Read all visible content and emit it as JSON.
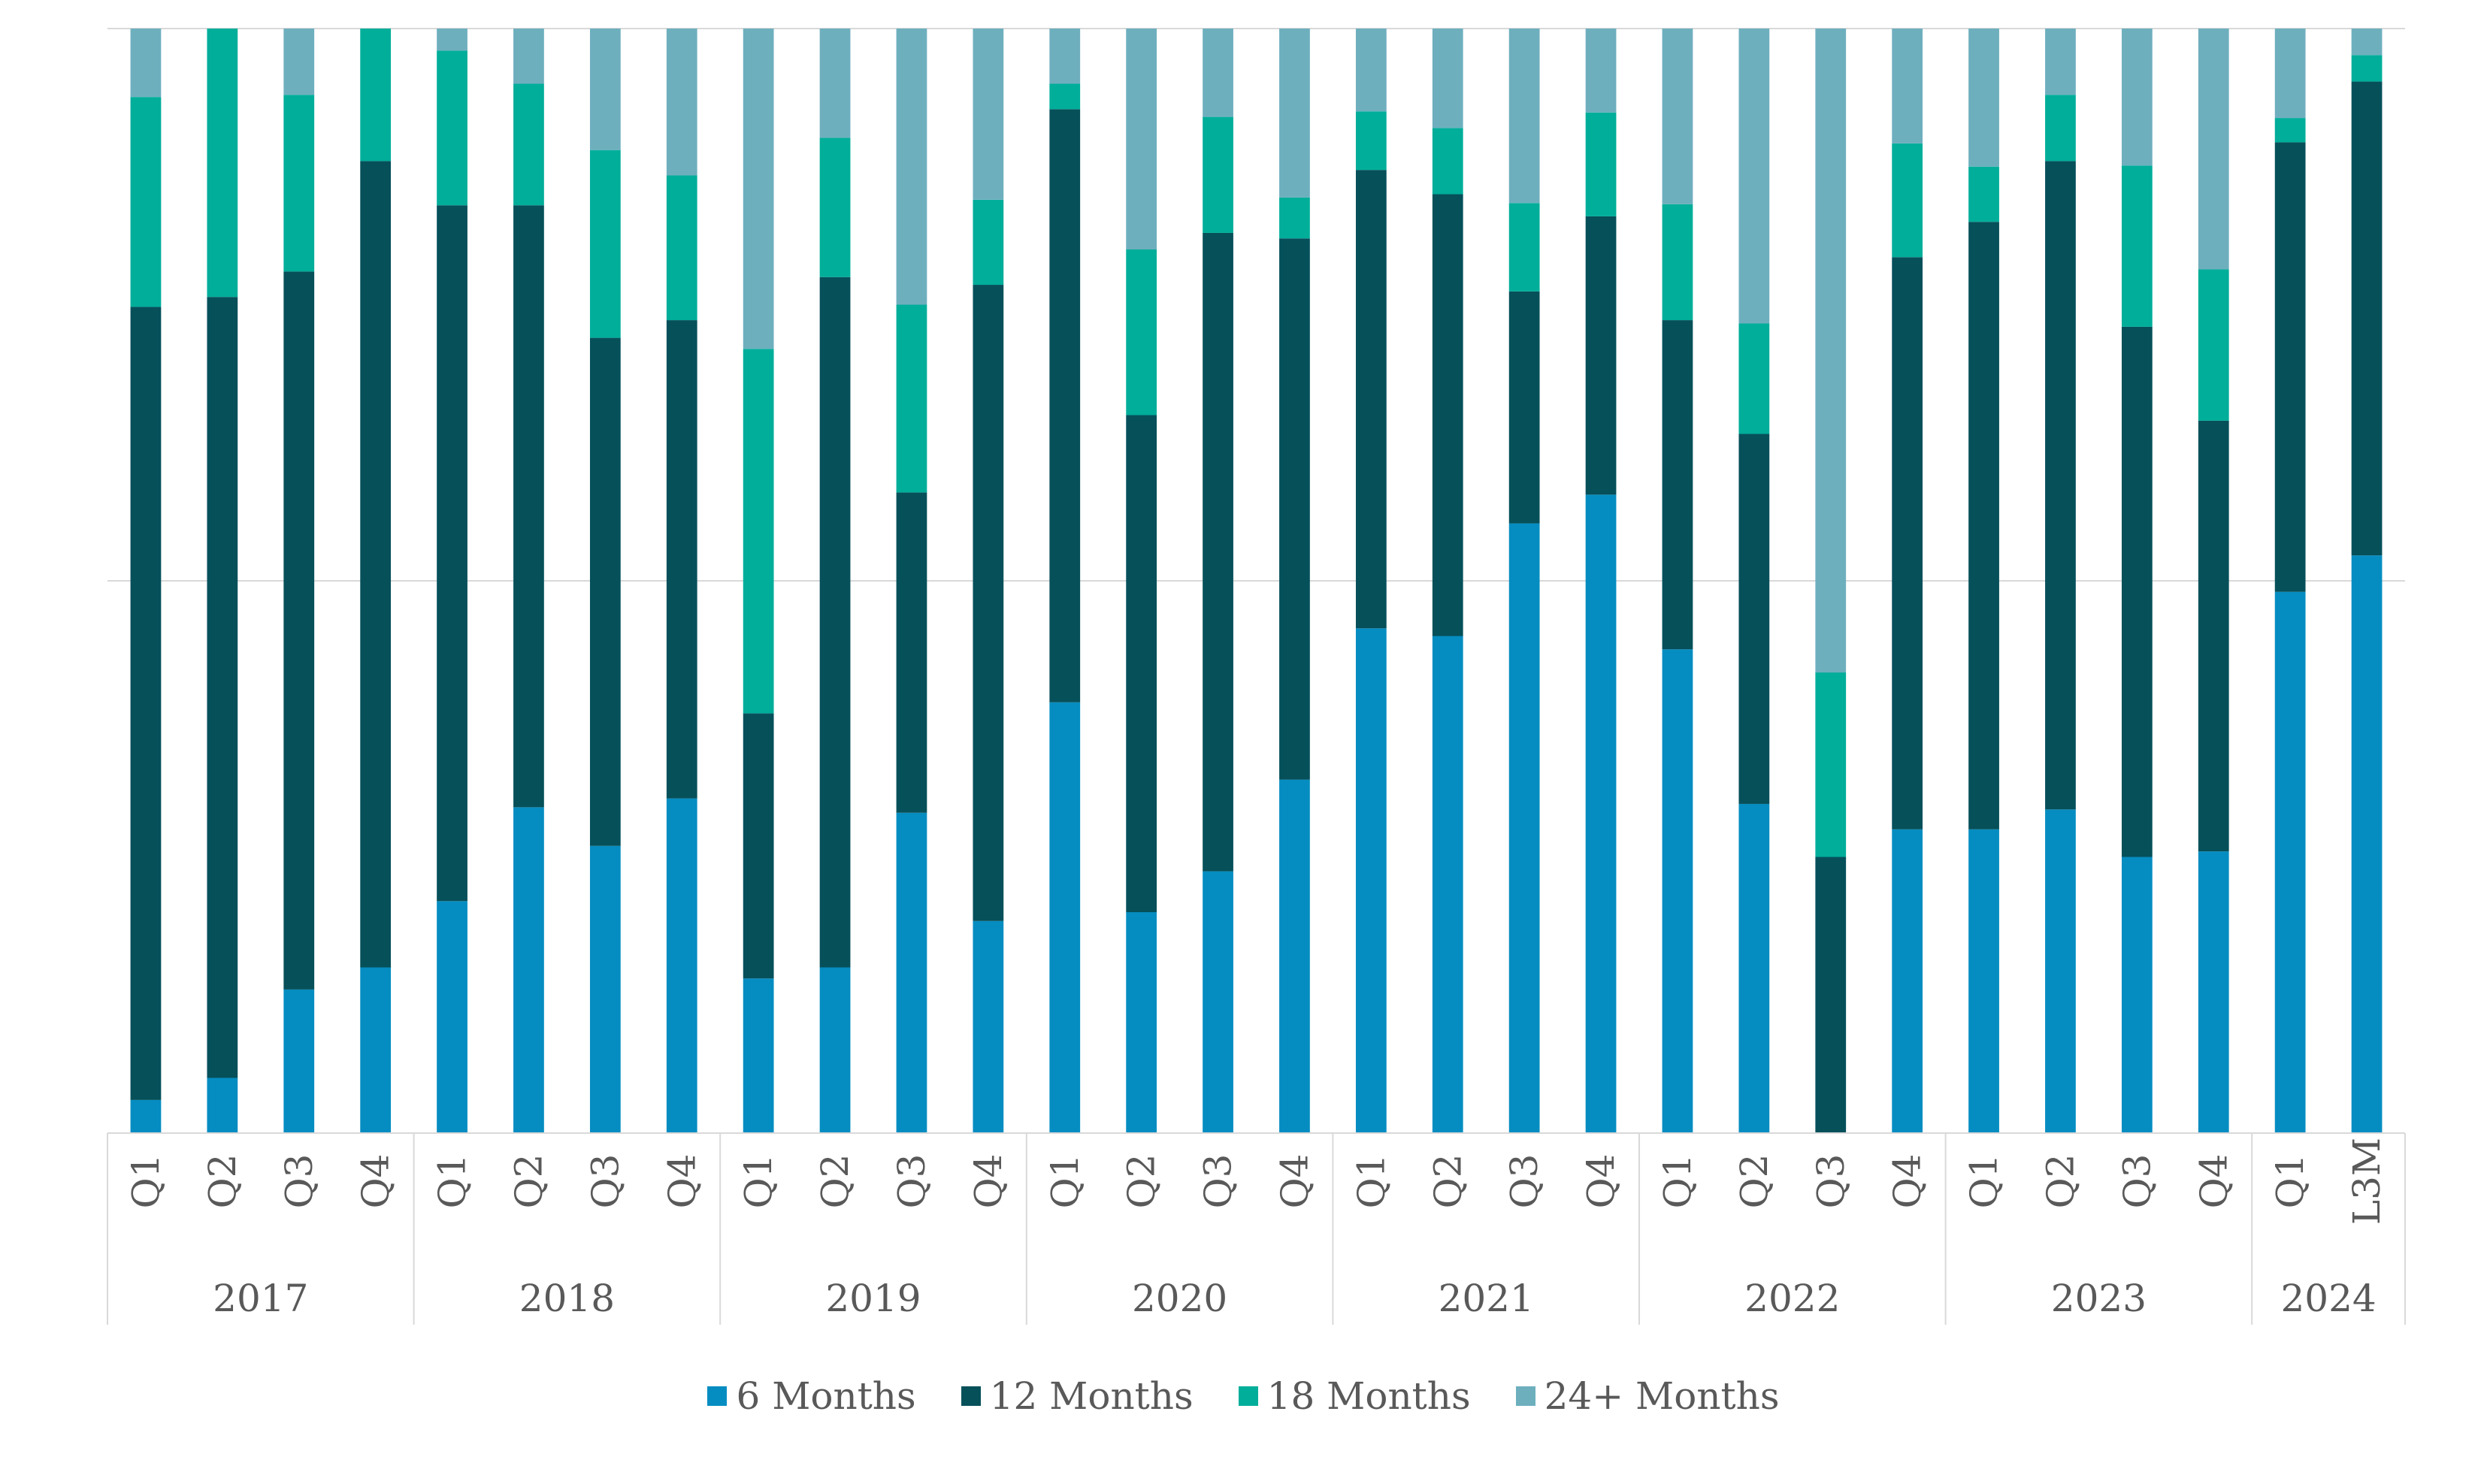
{
  "chart_data": {
    "type": "bar",
    "stacked": true,
    "normalized": true,
    "ylim": [
      0,
      1
    ],
    "grid": true,
    "legend_position": "bottom",
    "groups": [
      {
        "label": "2017",
        "categories": [
          "Q1",
          "Q2",
          "Q3",
          "Q4"
        ]
      },
      {
        "label": "2018",
        "categories": [
          "Q1",
          "Q2",
          "Q3",
          "Q4"
        ]
      },
      {
        "label": "2019",
        "categories": [
          "Q1",
          "Q2",
          "Q3",
          "Q4"
        ]
      },
      {
        "label": "2020",
        "categories": [
          "Q1",
          "Q2",
          "Q3",
          "Q4"
        ]
      },
      {
        "label": "2021",
        "categories": [
          "Q1",
          "Q2",
          "Q3",
          "Q4"
        ]
      },
      {
        "label": "2022",
        "categories": [
          "Q1",
          "Q2",
          "Q3",
          "Q4"
        ]
      },
      {
        "label": "2023",
        "categories": [
          "Q1",
          "Q2",
          "Q3",
          "Q4"
        ]
      },
      {
        "label": "2024",
        "categories": [
          "Q1",
          "L3M"
        ]
      }
    ],
    "series": [
      {
        "name": "6 Months",
        "color": "#058DC1",
        "values": [
          0.03,
          0.05,
          0.13,
          0.15,
          0.21,
          0.295,
          0.26,
          0.303,
          0.14,
          0.15,
          0.29,
          0.192,
          0.39,
          0.2,
          0.237,
          0.32,
          0.457,
          0.45,
          0.552,
          0.578,
          0.438,
          0.298,
          0.0,
          0.275,
          0.275,
          0.293,
          0.25,
          0.255,
          0.49,
          0.523
        ]
      },
      {
        "name": "12 Months",
        "color": "#06505A",
        "values": [
          0.718,
          0.707,
          0.65,
          0.73,
          0.63,
          0.545,
          0.46,
          0.433,
          0.24,
          0.625,
          0.29,
          0.576,
          0.537,
          0.45,
          0.578,
          0.49,
          0.415,
          0.4,
          0.21,
          0.252,
          0.298,
          0.335,
          0.25,
          0.518,
          0.55,
          0.587,
          0.48,
          0.39,
          0.407,
          0.429
        ]
      },
      {
        "name": "18 Months",
        "color": "#00AE9A",
        "values": [
          0.19,
          0.243,
          0.16,
          0.12,
          0.14,
          0.11,
          0.17,
          0.131,
          0.33,
          0.126,
          0.17,
          0.077,
          0.023,
          0.15,
          0.105,
          0.037,
          0.053,
          0.06,
          0.08,
          0.094,
          0.105,
          0.1,
          0.167,
          0.103,
          0.05,
          0.06,
          0.146,
          0.137,
          0.022,
          0.024
        ]
      },
      {
        "name": "24+ Months",
        "color": "#6EAFBE",
        "values": [
          0.062,
          0.0,
          0.06,
          0.0,
          0.02,
          0.05,
          0.11,
          0.133,
          0.29,
          0.099,
          0.25,
          0.155,
          0.05,
          0.2,
          0.08,
          0.153,
          0.075,
          0.09,
          0.158,
          0.076,
          0.159,
          0.267,
          0.583,
          0.104,
          0.125,
          0.06,
          0.124,
          0.218,
          0.081,
          0.024
        ]
      }
    ]
  }
}
